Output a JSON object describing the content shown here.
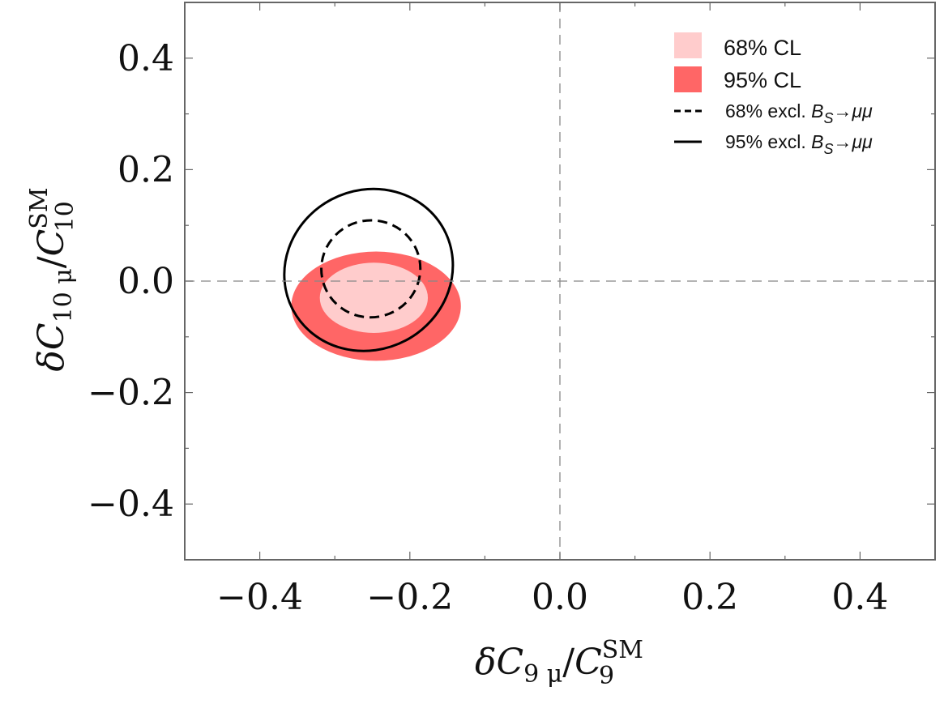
{
  "chart_data": {
    "type": "contour",
    "x_range": [
      -0.5,
      0.5
    ],
    "y_range": [
      -0.5,
      0.5
    ],
    "x_ticks": [
      -0.4,
      -0.2,
      0.0,
      0.2,
      0.4
    ],
    "y_ticks": [
      -0.4,
      -0.2,
      0.0,
      0.2,
      0.4
    ],
    "x_tick_labels": [
      "−0.4",
      "−0.2",
      "0.0",
      "0.2",
      "0.4"
    ],
    "y_tick_labels": [
      "−0.4",
      "−0.2",
      "0.0",
      "0.2",
      "0.4"
    ],
    "xlabel": "δC9 μ/C9SM",
    "ylabel": "δC10 μ/C10SM",
    "xlabel_parts": {
      "delta": "δ",
      "c": "C",
      "sub": "9 μ",
      "slash": "/",
      "c2": "C",
      "sup": "SM",
      "sub2": "9"
    },
    "ylabel_parts": {
      "delta": "δ",
      "c": "C",
      "sub": "10 μ",
      "slash": "/",
      "c2": "C",
      "sup": "SM",
      "sub2": "10"
    },
    "reference_lines": {
      "x": 0.0,
      "y": 0.0,
      "style": "dashed"
    },
    "regions": [
      {
        "name": "95% CL",
        "fill": "#ff6666",
        "center": [
          -0.245,
          -0.045
        ],
        "rx": 0.113,
        "ry": 0.098,
        "rotation_deg": 0
      },
      {
        "name": "68% CL",
        "fill": "#ffcccc",
        "center": [
          -0.248,
          -0.03
        ],
        "rx": 0.072,
        "ry": 0.063,
        "rotation_deg": 0
      }
    ],
    "contours": [
      {
        "name": "95% excl. Bs→μμ",
        "style": "solid",
        "color": "#000000",
        "center": [
          -0.255,
          0.02
        ],
        "rx": 0.114,
        "ry": 0.143,
        "rotation_deg": -28
      },
      {
        "name": "68% excl. Bs→μμ",
        "style": "dashed",
        "color": "#000000",
        "center": [
          -0.252,
          0.022
        ],
        "rx": 0.066,
        "ry": 0.087,
        "rotation_deg": -10
      }
    ],
    "legend": {
      "position": "top-right",
      "entries": [
        {
          "label": "68% CL",
          "kind": "patch",
          "color": "#ffcccc"
        },
        {
          "label": "95% CL",
          "kind": "patch",
          "color": "#ff6666"
        },
        {
          "label_prefix": "68% excl. ",
          "label_b": "B",
          "label_sub": "S",
          "label_rest": "→μμ",
          "kind": "dashed-line",
          "color": "#000000"
        },
        {
          "label_prefix": "95% excl. ",
          "label_b": "B",
          "label_sub": "S",
          "label_rest": "→μμ",
          "kind": "solid-line",
          "color": "#000000"
        }
      ]
    }
  }
}
